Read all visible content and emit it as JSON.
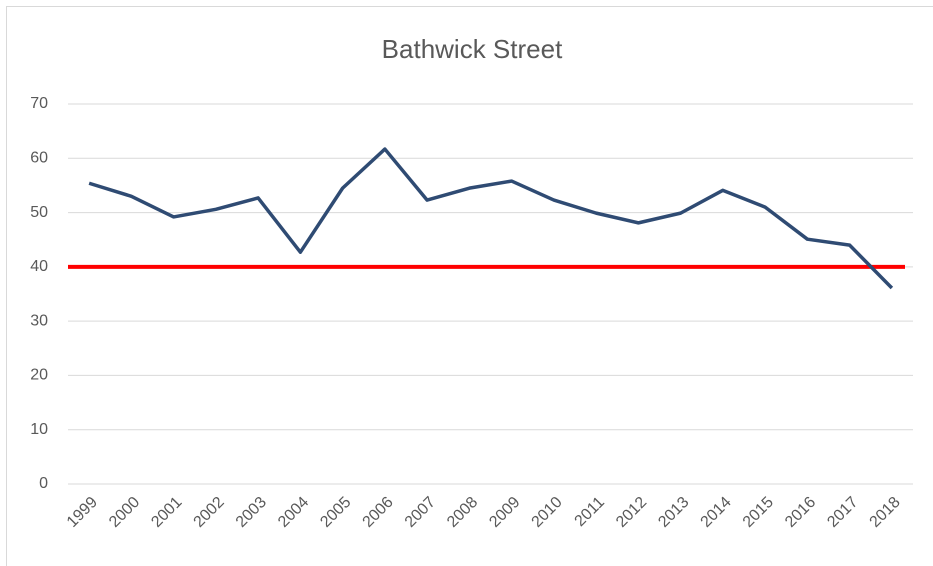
{
  "chart_data": {
    "type": "line",
    "title": "Bathwick Street",
    "categories": [
      "1999",
      "2000",
      "2001",
      "2002",
      "2003",
      "2004",
      "2005",
      "2006",
      "2007",
      "2008",
      "2009",
      "2010",
      "2011",
      "2012",
      "2013",
      "2014",
      "2015",
      "2016",
      "2017",
      "2018"
    ],
    "series": [
      {
        "color": "#2f4b73",
        "values": [
          55.4,
          53.0,
          49.2,
          50.6,
          52.7,
          42.7,
          54.5,
          61.7,
          52.3,
          54.5,
          55.8,
          52.3,
          49.9,
          48.1,
          49.9,
          54.1,
          51.0,
          45.1,
          44.0,
          36.1
        ]
      }
    ],
    "reference_line": {
      "value": 40,
      "color": "#ff0000"
    },
    "ylim": [
      0,
      70
    ],
    "yticks": [
      0,
      10,
      20,
      30,
      40,
      50,
      60,
      70
    ],
    "grid": true
  }
}
